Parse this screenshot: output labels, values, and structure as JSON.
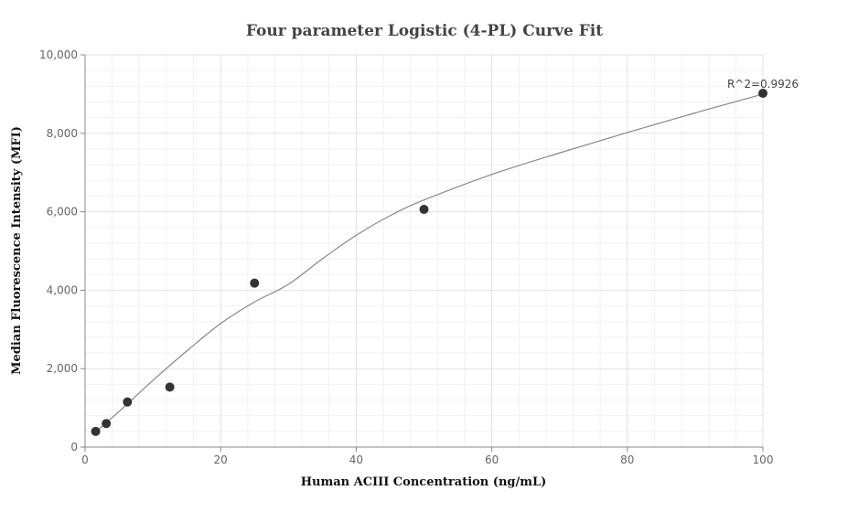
{
  "chart_data": {
    "type": "scatter",
    "title": "Four parameter Logistic (4-PL) Curve Fit",
    "xlabel": "Human ACIII Concentration (ng/mL)",
    "ylabel": "Median Fluorescence Intensity (MFI)",
    "xlim": [
      0,
      100
    ],
    "ylim": [
      0,
      10000
    ],
    "x_ticks": [
      0,
      20,
      40,
      60,
      80,
      100
    ],
    "y_ticks": [
      0,
      2000,
      4000,
      6000,
      8000,
      10000
    ],
    "x_tick_labels": [
      "0",
      "20",
      "40",
      "60",
      "80",
      "100"
    ],
    "y_tick_labels": [
      "0",
      "2,000",
      "4,000",
      "6,000",
      "8,000",
      "10,000"
    ],
    "grid": true,
    "series": [
      {
        "x": [
          1.5625,
          3.125,
          6.25,
          12.5,
          25,
          50,
          100
        ],
        "y": [
          400,
          600,
          1150,
          1530,
          4180,
          6060,
          9020
        ],
        "color": "#333333"
      }
    ],
    "fit_curve": {
      "x": [
        1.5625,
        3.125,
        6.25,
        10,
        15,
        20,
        25,
        30,
        35,
        40,
        45,
        50,
        60,
        70,
        80,
        90,
        100
      ],
      "y": [
        380,
        620,
        1100,
        1700,
        2450,
        3150,
        3700,
        4150,
        4800,
        5400,
        5900,
        6300,
        6950,
        7500,
        8020,
        8520,
        9000
      ],
      "color": "#888888"
    },
    "annotation": {
      "text": "R^2=0.9926",
      "x": 100,
      "y": 9020
    }
  }
}
